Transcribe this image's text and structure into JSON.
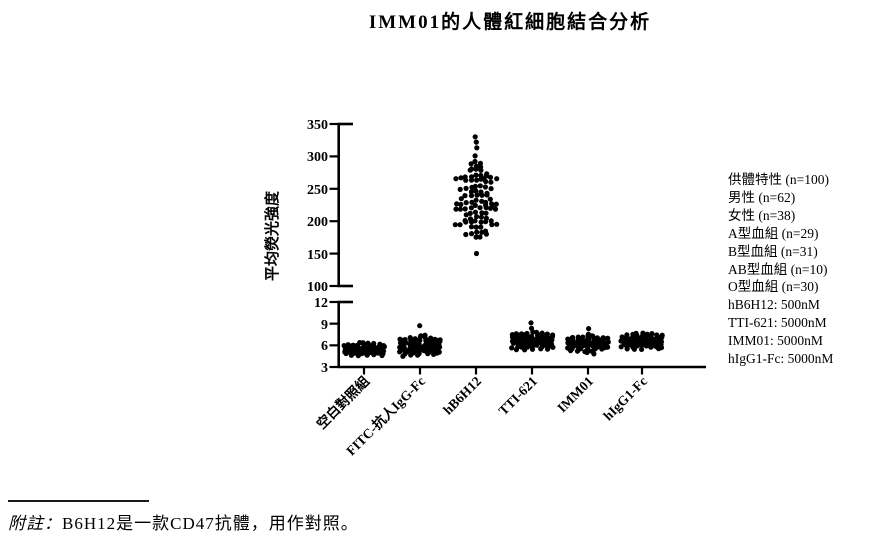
{
  "title": "IMM01的人體紅細胞結合分析",
  "chart_data": {
    "type": "scatter",
    "subtype": "beeswarm-dot-plot",
    "title": "IMM01的人體紅細胞結合分析",
    "xlabel": "",
    "ylabel": "平均熒光強度",
    "axis_break": true,
    "upper_axis": {
      "range": [
        100,
        350
      ],
      "ticks": [
        350,
        300,
        250,
        200,
        150,
        100
      ]
    },
    "lower_axis": {
      "range": [
        3,
        12
      ],
      "ticks": [
        12,
        9,
        6,
        3
      ]
    },
    "categories": [
      "空白對照組",
      "FITC-抗人IgG-Fc",
      "hB6H12",
      "TTI-621",
      "IMM01",
      "hIgG1-Fc"
    ],
    "dot_color": "#000000",
    "groups": [
      {
        "label": "空白對照組",
        "n": 100,
        "segment": "lower",
        "center": 5.4,
        "sd": 0.5,
        "main_range": [
          4.4,
          6.6
        ],
        "outliers": []
      },
      {
        "label": "FITC-抗人IgG-Fc",
        "n": 100,
        "segment": "lower",
        "center": 5.9,
        "sd": 0.7,
        "main_range": [
          4.5,
          7.4
        ],
        "outliers": [
          8.7
        ]
      },
      {
        "label": "hB6H12",
        "n": 100,
        "segment": "upper",
        "center": 225,
        "sd": 35,
        "main_range": [
          172,
          292
        ],
        "outliers": [
          331,
          322,
          312,
          302,
          150
        ]
      },
      {
        "label": "TTI-621",
        "n": 100,
        "segment": "lower",
        "center": 6.6,
        "sd": 0.7,
        "main_range": [
          5.1,
          8.0
        ],
        "outliers": [
          9.2,
          8.4
        ]
      },
      {
        "label": "IMM01",
        "n": 100,
        "segment": "lower",
        "center": 6.3,
        "sd": 0.65,
        "main_range": [
          4.9,
          7.6
        ],
        "outliers": [
          8.3
        ]
      },
      {
        "label": "hIgG1-Fc",
        "n": 100,
        "segment": "lower",
        "center": 6.5,
        "sd": 0.6,
        "main_range": [
          5.2,
          7.9
        ],
        "outliers": []
      }
    ]
  },
  "legend": {
    "lines": [
      "供體特性 (n=100)",
      "男性 (n=62)",
      "女性 (n=38)",
      "A型血組 (n=29)",
      "B型血組 (n=31)",
      "AB型血組 (n=10)",
      "O型血組 (n=30)",
      "hB6H12: 500nM",
      "TTI-621: 5000nM",
      "IMM01: 5000nM",
      "hIgG1-Fc: 5000nM"
    ]
  },
  "note": {
    "prefix": "附註：",
    "body": "B6H12是一款CD47抗體，用作對照。"
  }
}
